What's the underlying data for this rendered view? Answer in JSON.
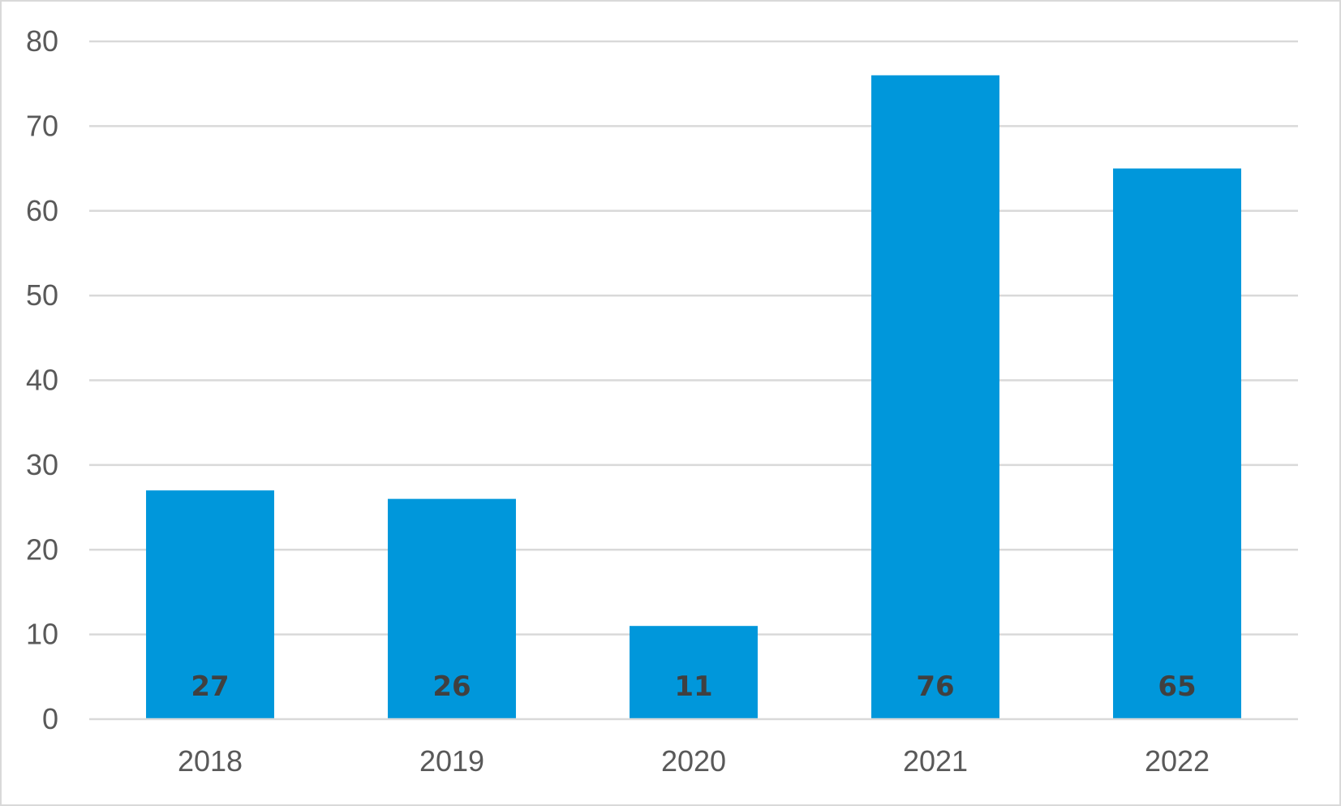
{
  "chart_data": {
    "type": "bar",
    "categories": [
      "2018",
      "2019",
      "2020",
      "2021",
      "2022"
    ],
    "values": [
      27,
      26,
      11,
      76,
      65
    ],
    "data_labels": [
      "27",
      "26",
      "11",
      "76",
      "65"
    ],
    "ylim": [
      0,
      80
    ],
    "y_ticks": [
      "0",
      "10",
      "20",
      "30",
      "40",
      "50",
      "60",
      "70",
      "80"
    ],
    "title": "",
    "xlabel": "",
    "ylabel": "",
    "grid": true,
    "legend": "none",
    "colors": {
      "bar": "#0097DB",
      "grid": "#D9D9D9",
      "tick_text": "#595959",
      "data_label_text": "#404040"
    }
  }
}
